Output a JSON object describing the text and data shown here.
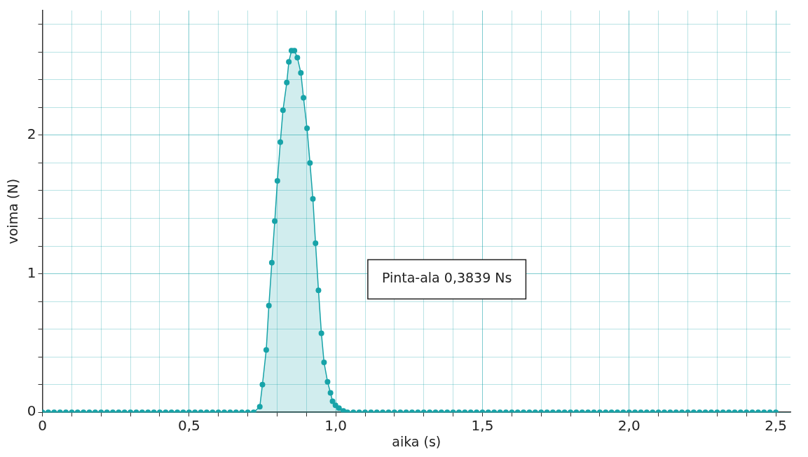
{
  "chart_data": {
    "type": "area",
    "xlabel": "aika (s)",
    "ylabel": "voima (N)",
    "color": "#17a3a8",
    "marker": "circle",
    "grid": true,
    "legend": false,
    "xlim": [
      0,
      2.55
    ],
    "ylim": [
      0,
      2.9
    ],
    "xticks": [
      {
        "value": 0,
        "label": "0"
      },
      {
        "value": 0.1,
        "label": null
      },
      {
        "value": 0.2,
        "label": null
      },
      {
        "value": 0.3,
        "label": null
      },
      {
        "value": 0.4,
        "label": null
      },
      {
        "value": 0.5,
        "label": "0,5"
      },
      {
        "value": 0.6,
        "label": null
      },
      {
        "value": 0.7,
        "label": null
      },
      {
        "value": 0.8,
        "label": null
      },
      {
        "value": 0.9,
        "label": null
      },
      {
        "value": 1.0,
        "label": "1,0"
      },
      {
        "value": 1.1,
        "label": null
      },
      {
        "value": 1.2,
        "label": null
      },
      {
        "value": 1.3,
        "label": null
      },
      {
        "value": 1.4,
        "label": null
      },
      {
        "value": 1.5,
        "label": "1,5"
      },
      {
        "value": 1.6,
        "label": null
      },
      {
        "value": 1.7,
        "label": null
      },
      {
        "value": 1.8,
        "label": null
      },
      {
        "value": 1.9,
        "label": null
      },
      {
        "value": 2.0,
        "label": "2,0"
      },
      {
        "value": 2.1,
        "label": null
      },
      {
        "value": 2.2,
        "label": null
      },
      {
        "value": 2.3,
        "label": null
      },
      {
        "value": 2.4,
        "label": null
      },
      {
        "value": 2.5,
        "label": "2,5"
      }
    ],
    "yticks": [
      {
        "value": 0,
        "label": "0"
      },
      {
        "value": 0.2,
        "label": null
      },
      {
        "value": 0.4,
        "label": null
      },
      {
        "value": 0.6,
        "label": null
      },
      {
        "value": 0.8,
        "label": null
      },
      {
        "value": 1,
        "label": "1"
      },
      {
        "value": 1.2,
        "label": null
      },
      {
        "value": 1.4,
        "label": null
      },
      {
        "value": 1.6,
        "label": null
      },
      {
        "value": 1.8,
        "label": null
      },
      {
        "value": 2,
        "label": "2"
      },
      {
        "value": 2.2,
        "label": null
      },
      {
        "value": 2.4,
        "label": null
      },
      {
        "value": 2.6,
        "label": null
      },
      {
        "value": 2.8,
        "label": null
      }
    ],
    "x": [
      0,
      0.02,
      0.04,
      0.06,
      0.08,
      0.1,
      0.12,
      0.14,
      0.16,
      0.18,
      0.2,
      0.22,
      0.24,
      0.26,
      0.28,
      0.3,
      0.32,
      0.34,
      0.36,
      0.38,
      0.4,
      0.42,
      0.44,
      0.46,
      0.48,
      0.5,
      0.52,
      0.54,
      0.56,
      0.58,
      0.6,
      0.62,
      0.64,
      0.66,
      0.68,
      0.7,
      0.72,
      0.741,
      0.75,
      0.763,
      0.772,
      0.782,
      0.792,
      0.801,
      0.811,
      0.82,
      0.833,
      0.84,
      0.849,
      0.859,
      0.869,
      0.881,
      0.89,
      0.902,
      0.912,
      0.922,
      0.931,
      0.941,
      0.951,
      0.96,
      0.972,
      0.982,
      0.989,
      0.999,
      1.011,
      1.026,
      1.04,
      1.06,
      1.08,
      1.1,
      1.12,
      1.14,
      1.16,
      1.18,
      1.2,
      1.22,
      1.24,
      1.26,
      1.28,
      1.3,
      1.32,
      1.34,
      1.36,
      1.38,
      1.4,
      1.42,
      1.44,
      1.46,
      1.48,
      1.5,
      1.52,
      1.54,
      1.56,
      1.58,
      1.6,
      1.62,
      1.64,
      1.66,
      1.68,
      1.7,
      1.72,
      1.74,
      1.76,
      1.78,
      1.8,
      1.82,
      1.84,
      1.86,
      1.88,
      1.9,
      1.92,
      1.94,
      1.96,
      1.98,
      2.0,
      2.02,
      2.04,
      2.06,
      2.08,
      2.1,
      2.12,
      2.14,
      2.16,
      2.18,
      2.2,
      2.22,
      2.24,
      2.26,
      2.28,
      2.3,
      2.32,
      2.34,
      2.36,
      2.38,
      2.4,
      2.42,
      2.44,
      2.46,
      2.48,
      2.5
    ],
    "values": [
      0,
      0,
      0,
      0,
      0,
      0,
      0,
      0,
      0,
      0,
      0,
      0,
      0,
      0,
      0,
      0,
      0,
      0,
      0,
      0,
      0,
      0,
      0,
      0,
      0,
      0,
      0,
      0,
      0,
      0,
      0,
      0,
      0,
      0,
      0,
      0,
      0,
      0.04,
      0.2,
      0.45,
      0.77,
      1.08,
      1.38,
      1.67,
      1.95,
      2.18,
      2.38,
      2.53,
      2.61,
      2.61,
      2.56,
      2.45,
      2.27,
      2.05,
      1.8,
      1.54,
      1.22,
      0.88,
      0.57,
      0.36,
      0.22,
      0.14,
      0.08,
      0.05,
      0.03,
      0.01,
      0,
      0,
      0,
      0,
      0,
      0,
      0,
      0,
      0,
      0,
      0,
      0,
      0,
      0,
      0,
      0,
      0,
      0,
      0,
      0,
      0,
      0,
      0,
      0,
      0,
      0,
      0,
      0,
      0,
      0,
      0,
      0,
      0,
      0,
      0,
      0,
      0,
      0,
      0,
      0,
      0,
      0,
      0,
      0,
      0,
      0,
      0,
      0,
      0,
      0,
      0,
      0,
      0,
      0,
      0,
      0,
      0,
      0,
      0,
      0,
      0,
      0,
      0,
      0,
      0,
      0,
      0,
      0,
      0,
      0,
      0,
      0,
      0,
      0
    ],
    "annotations": [
      "Pinta-ala 0,3839 Ns"
    ]
  }
}
